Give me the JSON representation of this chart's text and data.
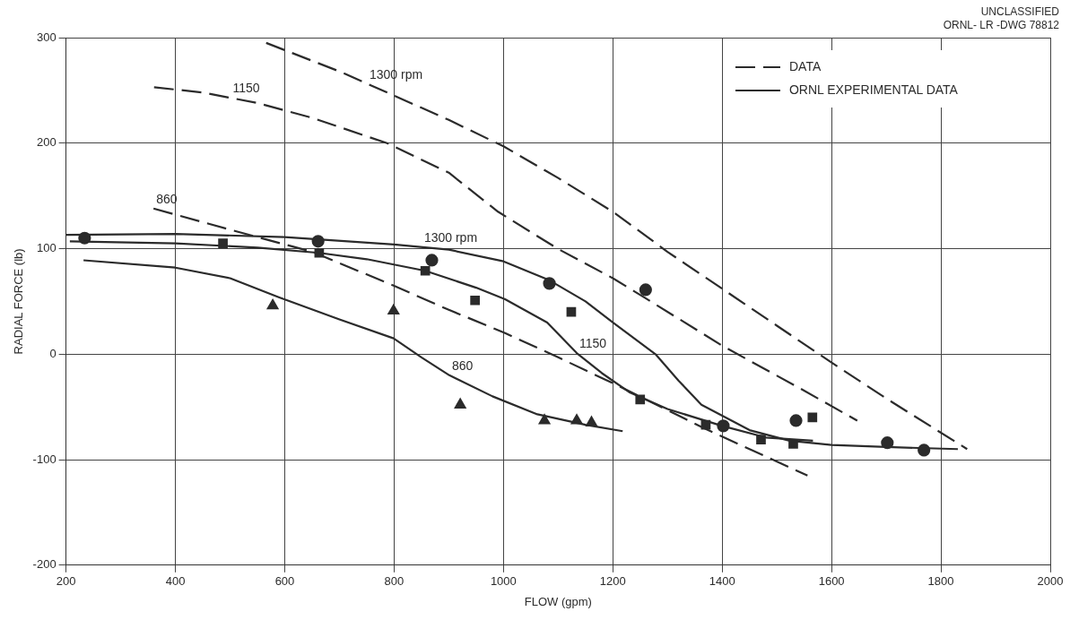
{
  "chart_data": {
    "type": "line",
    "xlabel": "FLOW (gpm)",
    "ylabel": "RADIAL FORCE (lb)",
    "xlim": [
      200,
      2000
    ],
    "xticks": [
      200,
      400,
      600,
      800,
      1000,
      1200,
      1400,
      1600,
      1800,
      2000
    ],
    "ylim": [
      -200,
      300
    ],
    "yticks": [
      -200,
      -100,
      0,
      100,
      200,
      300
    ],
    "grid": true,
    "legend": "top right",
    "series": [
      {
        "name": "DATA",
        "type": "line",
        "line_style": "dashed",
        "marker": "none",
        "color": "#2b2b2b",
        "x": [
          566,
          700,
          800,
          900,
          1000,
          1100,
          1200,
          1300,
          1400,
          1500,
          1600,
          1700,
          1848
        ],
        "values": [
          295,
          268,
          245,
          222,
          197,
          167,
          135,
          97,
          62,
          27,
          -8,
          -42,
          -90
        ]
      },
      {
        "type": "line",
        "line_style": "dashed",
        "marker": "none",
        "color": "#2b2b2b",
        "x": [
          361,
          450,
          550,
          650,
          787,
          900,
          990,
          1099,
          1200,
          1260,
          1400,
          1541,
          1647
        ],
        "values": [
          253,
          248,
          238,
          224,
          200,
          172,
          135,
          100,
          72,
          53,
          8,
          -32,
          -63
        ]
      },
      {
        "type": "line",
        "line_style": "dashed",
        "marker": "none",
        "color": "#2b2b2b",
        "x": [
          360,
          500,
          650,
          799,
          900,
          1003,
          1100,
          1218,
          1362,
          1450,
          1556
        ],
        "values": [
          138,
          118,
          97,
          65,
          42,
          20,
          -3,
          -32,
          -69,
          -90,
          -115
        ]
      },
      {
        "name": "ORNL EXPERIMENTAL DATA",
        "type": "line",
        "line_style": "solid",
        "marker": "none",
        "color": "#2b2b2b",
        "x": [
          200,
          400,
          600,
          800,
          900,
          1000,
          1084,
          1150,
          1200,
          1278,
          1320,
          1362,
          1450,
          1523,
          1600,
          1700,
          1831
        ],
        "values": [
          113,
          114,
          111,
          104,
          99,
          88,
          70,
          50,
          30,
          0,
          -25,
          -48,
          -72,
          -82,
          -86,
          -88,
          -90
        ]
      },
      {
        "type": "line",
        "line_style": "solid",
        "marker": "none",
        "color": "#2b2b2b",
        "x": [
          207,
          400,
          550,
          663,
          750,
          857,
          950,
          1003,
          1080,
          1134,
          1180,
          1230,
          1300,
          1400,
          1480,
          1566
        ],
        "values": [
          107,
          105,
          101,
          96,
          90,
          79,
          63,
          52,
          30,
          1,
          -18,
          -36,
          -52,
          -68,
          -79,
          -82
        ]
      },
      {
        "type": "line",
        "line_style": "solid",
        "marker": "none",
        "color": "#2b2b2b",
        "x": [
          232,
          400,
          500,
          589,
          700,
          799,
          850,
          901,
          980,
          1062,
          1150,
          1218
        ],
        "values": [
          89,
          82,
          72,
          54,
          33,
          15,
          -3,
          -20,
          -40,
          -57,
          -67,
          -73
        ]
      },
      {
        "type": "scatter",
        "marker": "circle",
        "color": "#2b2b2b",
        "x": [
          234,
          661,
          869,
          1084,
          1260,
          1402,
          1535,
          1702,
          1769
        ],
        "values": [
          110,
          107,
          89,
          67,
          61,
          -68,
          -63,
          -84,
          -91
        ]
      },
      {
        "type": "scatter",
        "marker": "square",
        "color": "#2b2b2b",
        "x": [
          487,
          663,
          857,
          948,
          1124,
          1250,
          1370,
          1471,
          1530,
          1565
        ],
        "values": [
          105,
          96,
          79,
          51,
          40,
          -43,
          -67,
          -81,
          -85,
          -60
        ]
      },
      {
        "type": "scatter",
        "marker": "triangle",
        "color": "#2b2b2b",
        "x": [
          578,
          799,
          921,
          1075,
          1134,
          1161
        ],
        "values": [
          46,
          41,
          -48,
          -63,
          -63,
          -65
        ]
      }
    ],
    "annotations": [
      {
        "text": "1300 rpm",
        "x": 750,
        "y": 256
      },
      {
        "text": "1150",
        "x": 500,
        "y": 243
      },
      {
        "text": "860",
        "x": 360,
        "y": 138
      },
      {
        "text": "1300 rpm",
        "x": 850,
        "y": 101
      },
      {
        "text": "1150",
        "x": 1134,
        "y": 1
      },
      {
        "text": "860",
        "x": 901,
        "y": -20
      },
      "UNCLASSIFIED",
      "ORNL- LR -DWG 78812"
    ]
  }
}
